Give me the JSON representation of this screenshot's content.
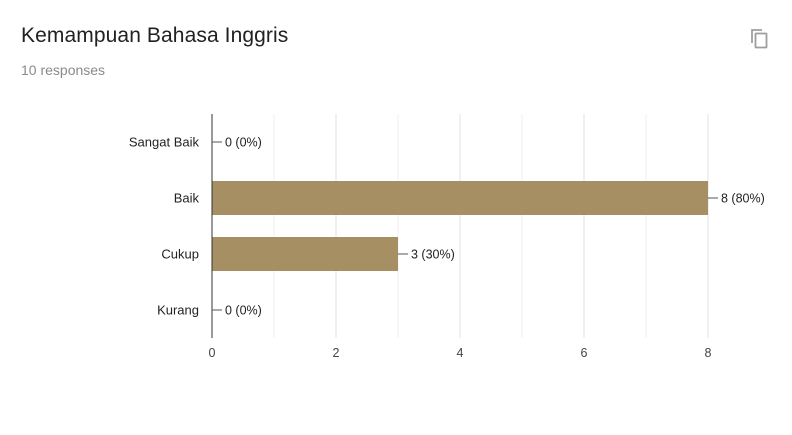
{
  "header": {
    "title": "Kemampuan Bahasa Inggris",
    "responses": "10 responses",
    "copy_icon": "copy-icon"
  },
  "chart_data": {
    "type": "bar",
    "orientation": "horizontal",
    "categories": [
      "Sangat Baik",
      "Baik",
      "Cukup",
      "Kurang"
    ],
    "values": [
      0,
      8,
      3,
      0
    ],
    "data_labels": [
      "0 (0%)",
      "8 (80%)",
      "3 (30%)",
      "0 (0%)"
    ],
    "xlim": [
      0,
      8
    ],
    "xticks": [
      "0",
      "2",
      "4",
      "6",
      "8"
    ],
    "grid": true,
    "color": "#a58f63"
  }
}
